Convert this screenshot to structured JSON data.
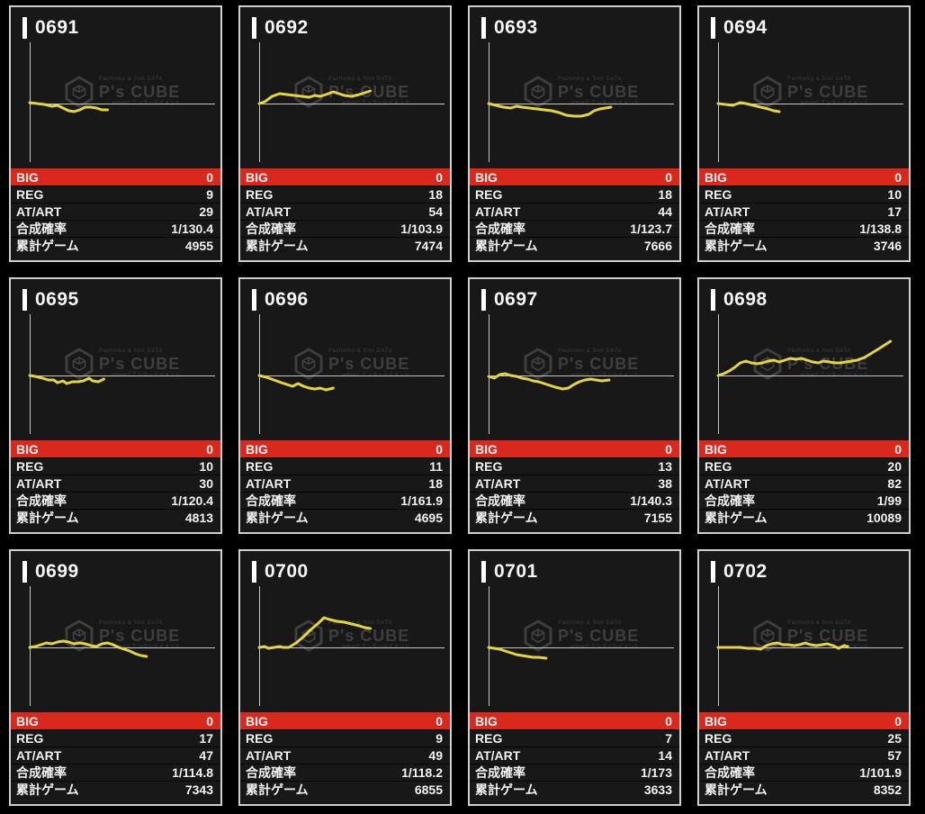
{
  "watermark": {
    "top_text": "Pachinko & Slot DATA",
    "brand": "P's CUBE",
    "sub_text": "enban2 エンターテイメント"
  },
  "stats_labels": {
    "big": "BIG",
    "reg": "REG",
    "at_art": "AT/ART",
    "combined_rate": "合成確率",
    "total_games": "累計ゲーム"
  },
  "colors": {
    "page_bg": "#000000",
    "panel_bg": "#181818",
    "panel_border": "#cfcfcf",
    "big_row_bg": "#d9291e",
    "line": "#e5d24b",
    "axis": "#c7c7c7",
    "watermark": "#3e3e3e",
    "text": "#f2f2f2"
  },
  "machines": [
    {
      "id": "0691",
      "big": "0",
      "reg": "9",
      "at_art": "29",
      "combined_rate": "1/130.4",
      "total_games": "4955",
      "line": [
        [
          0,
          1
        ],
        [
          0.04,
          0
        ],
        [
          0.08,
          -1
        ],
        [
          0.12,
          -3
        ],
        [
          0.15,
          -2
        ],
        [
          0.18,
          -5
        ],
        [
          0.21,
          -8
        ],
        [
          0.24,
          -9
        ],
        [
          0.27,
          -7
        ],
        [
          0.3,
          -4
        ],
        [
          0.33,
          -4
        ],
        [
          0.36,
          -5
        ],
        [
          0.39,
          -7
        ],
        [
          0.42,
          -7
        ]
      ]
    },
    {
      "id": "0692",
      "big": "0",
      "reg": "18",
      "at_art": "54",
      "combined_rate": "1/103.9",
      "total_games": "7474",
      "line": [
        [
          0,
          0
        ],
        [
          0.03,
          2
        ],
        [
          0.07,
          8
        ],
        [
          0.11,
          11
        ],
        [
          0.15,
          10
        ],
        [
          0.19,
          9
        ],
        [
          0.23,
          8
        ],
        [
          0.27,
          7
        ],
        [
          0.3,
          9
        ],
        [
          0.33,
          8
        ],
        [
          0.36,
          10
        ],
        [
          0.4,
          13
        ],
        [
          0.43,
          11
        ],
        [
          0.46,
          9
        ],
        [
          0.5,
          8
        ],
        [
          0.54,
          10
        ],
        [
          0.57,
          12
        ],
        [
          0.6,
          14
        ]
      ]
    },
    {
      "id": "0693",
      "big": "0",
      "reg": "18",
      "at_art": "44",
      "combined_rate": "1/123.7",
      "total_games": "7666",
      "line": [
        [
          0,
          0
        ],
        [
          0.04,
          -2
        ],
        [
          0.08,
          -4
        ],
        [
          0.12,
          -5
        ],
        [
          0.15,
          -3
        ],
        [
          0.18,
          -4
        ],
        [
          0.22,
          -5
        ],
        [
          0.26,
          -6
        ],
        [
          0.3,
          -7
        ],
        [
          0.34,
          -8
        ],
        [
          0.38,
          -10
        ],
        [
          0.42,
          -13
        ],
        [
          0.46,
          -14
        ],
        [
          0.5,
          -14
        ],
        [
          0.54,
          -12
        ],
        [
          0.57,
          -8
        ],
        [
          0.6,
          -6
        ],
        [
          0.63,
          -5
        ],
        [
          0.66,
          -4
        ]
      ]
    },
    {
      "id": "0694",
      "big": "0",
      "reg": "10",
      "at_art": "17",
      "combined_rate": "1/138.8",
      "total_games": "3746",
      "line": [
        [
          0,
          0
        ],
        [
          0.04,
          -1
        ],
        [
          0.08,
          -2
        ],
        [
          0.12,
          1
        ],
        [
          0.15,
          0
        ],
        [
          0.19,
          -2
        ],
        [
          0.23,
          -4
        ],
        [
          0.27,
          -6
        ],
        [
          0.3,
          -8
        ],
        [
          0.33,
          -9
        ]
      ]
    },
    {
      "id": "0695",
      "big": "0",
      "reg": "10",
      "at_art": "30",
      "combined_rate": "1/120.4",
      "total_games": "4813",
      "line": [
        [
          0,
          0
        ],
        [
          0.03,
          -1
        ],
        [
          0.07,
          -3
        ],
        [
          0.1,
          -5
        ],
        [
          0.13,
          -5
        ],
        [
          0.15,
          -8
        ],
        [
          0.18,
          -6
        ],
        [
          0.2,
          -9
        ],
        [
          0.23,
          -7
        ],
        [
          0.26,
          -7
        ],
        [
          0.29,
          -6
        ],
        [
          0.32,
          -3
        ],
        [
          0.34,
          -6
        ],
        [
          0.37,
          -7
        ],
        [
          0.4,
          -4
        ]
      ]
    },
    {
      "id": "0696",
      "big": "0",
      "reg": "11",
      "at_art": "18",
      "combined_rate": "1/161.9",
      "total_games": "4695",
      "line": [
        [
          0,
          0
        ],
        [
          0.04,
          -2
        ],
        [
          0.08,
          -5
        ],
        [
          0.12,
          -8
        ],
        [
          0.15,
          -10
        ],
        [
          0.18,
          -12
        ],
        [
          0.21,
          -9
        ],
        [
          0.24,
          -12
        ],
        [
          0.27,
          -14
        ],
        [
          0.3,
          -15
        ],
        [
          0.33,
          -14
        ],
        [
          0.36,
          -16
        ],
        [
          0.4,
          -14
        ]
      ]
    },
    {
      "id": "0697",
      "big": "0",
      "reg": "13",
      "at_art": "38",
      "combined_rate": "1/140.3",
      "total_games": "7155",
      "line": [
        [
          0,
          -1
        ],
        [
          0.03,
          -3
        ],
        [
          0.06,
          1
        ],
        [
          0.09,
          2
        ],
        [
          0.12,
          0
        ],
        [
          0.15,
          -1
        ],
        [
          0.18,
          -3
        ],
        [
          0.21,
          -4
        ],
        [
          0.24,
          -6
        ],
        [
          0.27,
          -7
        ],
        [
          0.3,
          -9
        ],
        [
          0.33,
          -11
        ],
        [
          0.36,
          -13
        ],
        [
          0.4,
          -15
        ],
        [
          0.43,
          -14
        ],
        [
          0.46,
          -10
        ],
        [
          0.49,
          -7
        ],
        [
          0.52,
          -5
        ],
        [
          0.55,
          -4
        ],
        [
          0.58,
          -5
        ],
        [
          0.61,
          -6
        ],
        [
          0.65,
          -5
        ]
      ]
    },
    {
      "id": "0698",
      "big": "0",
      "reg": "20",
      "at_art": "82",
      "combined_rate": "1/99",
      "total_games": "10089",
      "line": [
        [
          0,
          0
        ],
        [
          0.03,
          2
        ],
        [
          0.06,
          5
        ],
        [
          0.09,
          9
        ],
        [
          0.12,
          14
        ],
        [
          0.15,
          16
        ],
        [
          0.18,
          14
        ],
        [
          0.21,
          13
        ],
        [
          0.24,
          14
        ],
        [
          0.27,
          16
        ],
        [
          0.3,
          17
        ],
        [
          0.33,
          15
        ],
        [
          0.36,
          17
        ],
        [
          0.39,
          19
        ],
        [
          0.42,
          18
        ],
        [
          0.45,
          19
        ],
        [
          0.48,
          17
        ],
        [
          0.51,
          15
        ],
        [
          0.54,
          14
        ],
        [
          0.57,
          16
        ],
        [
          0.6,
          15
        ],
        [
          0.63,
          14
        ],
        [
          0.66,
          14
        ],
        [
          0.69,
          15
        ],
        [
          0.72,
          16
        ],
        [
          0.75,
          17
        ],
        [
          0.79,
          20
        ],
        [
          0.83,
          25
        ],
        [
          0.87,
          30
        ],
        [
          0.9,
          34
        ],
        [
          0.93,
          38
        ]
      ]
    },
    {
      "id": "0699",
      "big": "0",
      "reg": "17",
      "at_art": "47",
      "combined_rate": "1/114.8",
      "total_games": "7343",
      "line": [
        [
          0,
          0
        ],
        [
          0.03,
          1
        ],
        [
          0.06,
          3
        ],
        [
          0.09,
          5
        ],
        [
          0.12,
          4
        ],
        [
          0.15,
          6
        ],
        [
          0.18,
          7
        ],
        [
          0.21,
          6
        ],
        [
          0.24,
          4
        ],
        [
          0.27,
          5
        ],
        [
          0.3,
          4
        ],
        [
          0.33,
          2
        ],
        [
          0.36,
          1
        ],
        [
          0.39,
          4
        ],
        [
          0.42,
          5
        ],
        [
          0.45,
          3
        ],
        [
          0.48,
          0
        ],
        [
          0.51,
          -2
        ],
        [
          0.54,
          -4
        ],
        [
          0.57,
          -7
        ],
        [
          0.6,
          -9
        ],
        [
          0.63,
          -10
        ]
      ]
    },
    {
      "id": "0700",
      "big": "0",
      "reg": "9",
      "at_art": "49",
      "combined_rate": "1/118.2",
      "total_games": "6855",
      "line": [
        [
          0,
          0
        ],
        [
          0.03,
          1
        ],
        [
          0.05,
          -1
        ],
        [
          0.08,
          0
        ],
        [
          0.11,
          1
        ],
        [
          0.13,
          0
        ],
        [
          0.16,
          0
        ],
        [
          0.2,
          5
        ],
        [
          0.24,
          12
        ],
        [
          0.28,
          20
        ],
        [
          0.32,
          27
        ],
        [
          0.35,
          33
        ],
        [
          0.38,
          31
        ],
        [
          0.42,
          29
        ],
        [
          0.46,
          28
        ],
        [
          0.5,
          26
        ],
        [
          0.54,
          24
        ],
        [
          0.57,
          22
        ],
        [
          0.6,
          21
        ]
      ]
    },
    {
      "id": "0701",
      "big": "0",
      "reg": "7",
      "at_art": "14",
      "combined_rate": "1/173",
      "total_games": "3633",
      "line": [
        [
          0,
          0
        ],
        [
          0.03,
          -1
        ],
        [
          0.06,
          -2
        ],
        [
          0.09,
          -4
        ],
        [
          0.12,
          -6
        ],
        [
          0.15,
          -8
        ],
        [
          0.18,
          -9
        ],
        [
          0.21,
          -10
        ],
        [
          0.24,
          -11
        ],
        [
          0.27,
          -11
        ],
        [
          0.31,
          -12
        ]
      ]
    },
    {
      "id": "0702",
      "big": "0",
      "reg": "25",
      "at_art": "57",
      "combined_rate": "1/101.9",
      "total_games": "8352",
      "line": [
        [
          0,
          0
        ],
        [
          0.04,
          0
        ],
        [
          0.08,
          0
        ],
        [
          0.12,
          0
        ],
        [
          0.16,
          -1
        ],
        [
          0.2,
          -1
        ],
        [
          0.23,
          -2
        ],
        [
          0.26,
          2
        ],
        [
          0.29,
          4
        ],
        [
          0.32,
          5
        ],
        [
          0.35,
          3
        ],
        [
          0.38,
          3
        ],
        [
          0.41,
          2
        ],
        [
          0.44,
          3
        ],
        [
          0.47,
          5
        ],
        [
          0.5,
          3
        ],
        [
          0.53,
          2
        ],
        [
          0.56,
          3
        ],
        [
          0.59,
          4
        ],
        [
          0.62,
          2
        ],
        [
          0.65,
          -1
        ],
        [
          0.68,
          2
        ],
        [
          0.7,
          1
        ]
      ]
    }
  ]
}
